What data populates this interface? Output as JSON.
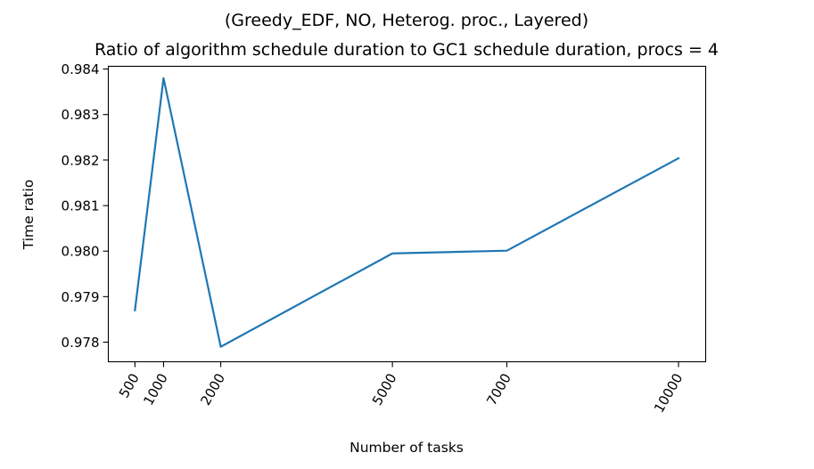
{
  "chart_data": {
    "type": "line",
    "title": "(Greedy_EDF, NO, Heterog. proc., Layered)",
    "subtitle": "Ratio of algorithm schedule duration to GC1 schedule duration, procs = 4",
    "xlabel": "Number of tasks",
    "ylabel": "Time ratio",
    "x": [
      500,
      1000,
      2000,
      5000,
      7000,
      10000
    ],
    "xticks": [
      "500",
      "1000",
      "2000",
      "5000",
      "7000",
      "10000"
    ],
    "series": [
      {
        "values": [
          0.9787,
          0.9838,
          0.9779,
          0.97995,
          0.98001,
          0.98204
        ]
      }
    ],
    "yticks": [
      "0.978",
      "0.979",
      "0.980",
      "0.981",
      "0.982",
      "0.983",
      "0.984"
    ],
    "xlim": [
      35,
      10475
    ],
    "ylim": [
      0.97757,
      0.98406
    ],
    "grid": false,
    "line_color": "#1f77b4"
  }
}
